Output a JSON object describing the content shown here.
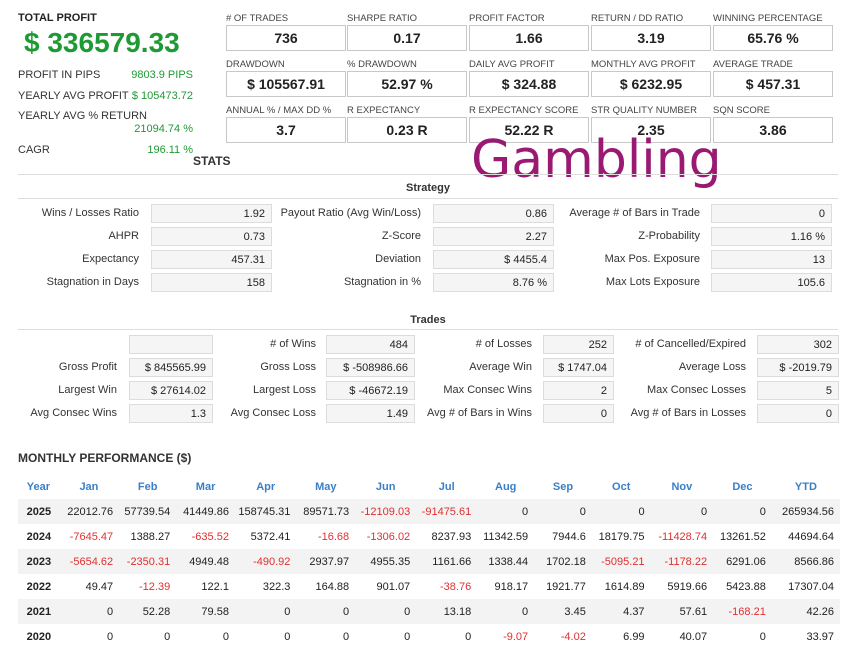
{
  "summary": {
    "total_profit_label": "TOTAL PROFIT",
    "total_profit_value": "$ 336579.33",
    "rows": [
      {
        "label": "PROFIT IN PIPS",
        "value": "9803.9 PIPS"
      },
      {
        "label": "YEARLY AVG PROFIT",
        "value": "$ 105473.72"
      },
      {
        "label": "YEARLY AVG % RETURN",
        "value": "21094.74 %"
      },
      {
        "label": "CAGR",
        "value": "196.11 %"
      }
    ]
  },
  "metrics": [
    {
      "label": "# OF TRADES",
      "value": "736"
    },
    {
      "label": "SHARPE RATIO",
      "value": "0.17"
    },
    {
      "label": "PROFIT FACTOR",
      "value": "1.66"
    },
    {
      "label": "RETURN / DD RATIO",
      "value": "3.19"
    },
    {
      "label": "WINNING PERCENTAGE",
      "value": "65.76 %"
    },
    {
      "label": "DRAWDOWN",
      "value": "$ 105567.91"
    },
    {
      "label": "% DRAWDOWN",
      "value": "52.97 %"
    },
    {
      "label": "DAILY AVG PROFIT",
      "value": "$ 324.88"
    },
    {
      "label": "MONTHLY AVG PROFIT",
      "value": "$ 6232.95"
    },
    {
      "label": "AVERAGE TRADE",
      "value": "$ 457.31"
    },
    {
      "label": "ANNUAL % / MAX DD %",
      "value": "3.7"
    },
    {
      "label": "R EXPECTANCY",
      "value": "0.23 R"
    },
    {
      "label": "R EXPECTANCY SCORE",
      "value": "52.22 R"
    },
    {
      "label": "STR QUALITY NUMBER",
      "value": "2.35"
    },
    {
      "label": "SQN SCORE",
      "value": "3.86"
    }
  ],
  "stats_title": "STATS",
  "overlay_text": "Gambling",
  "strategy": {
    "title": "Strategy",
    "items": [
      {
        "label": "Wins / Losses Ratio",
        "value": "1.92"
      },
      {
        "label": "Payout Ratio (Avg Win/Loss)",
        "value": "0.86"
      },
      {
        "label": "Average # of Bars in Trade",
        "value": "0"
      },
      {
        "label": "AHPR",
        "value": "0.73"
      },
      {
        "label": "Z-Score",
        "value": "2.27"
      },
      {
        "label": "Z-Probability",
        "value": "1.16 %"
      },
      {
        "label": "Expectancy",
        "value": "457.31"
      },
      {
        "label": "Deviation",
        "value": "$ 4455.4"
      },
      {
        "label": "Max Pos. Exposure",
        "value": "13"
      },
      {
        "label": "Stagnation in Days",
        "value": "158"
      },
      {
        "label": "Stagnation in %",
        "value": "8.76 %"
      },
      {
        "label": "Max Lots Exposure",
        "value": "105.6"
      }
    ]
  },
  "trades": {
    "title": "Trades",
    "items": [
      {
        "label": "",
        "value": ""
      },
      {
        "label": "# of Wins",
        "value": "484"
      },
      {
        "label": "# of Losses",
        "value": "252"
      },
      {
        "label": "# of Cancelled/Expired",
        "value": "302"
      },
      {
        "label": "Gross Profit",
        "value": "$ 845565.99"
      },
      {
        "label": "Gross Loss",
        "value": "$ -508986.66"
      },
      {
        "label": "Average Win",
        "value": "$ 1747.04"
      },
      {
        "label": "Average Loss",
        "value": "$ -2019.79"
      },
      {
        "label": "Largest Win",
        "value": "$ 27614.02"
      },
      {
        "label": "Largest Loss",
        "value": "$ -46672.19"
      },
      {
        "label": "Max Consec Wins",
        "value": "2"
      },
      {
        "label": "Max Consec Losses",
        "value": "5"
      },
      {
        "label": "Avg Consec Wins",
        "value": "1.3"
      },
      {
        "label": "Avg Consec Loss",
        "value": "1.49"
      },
      {
        "label": "Avg # of Bars in Wins",
        "value": "0"
      },
      {
        "label": "Avg # of Bars in Losses",
        "value": "0"
      }
    ]
  },
  "monthly": {
    "title": "MONTHLY PERFORMANCE ($)",
    "headers": [
      "Year",
      "Jan",
      "Feb",
      "Mar",
      "Apr",
      "May",
      "Jun",
      "Jul",
      "Aug",
      "Sep",
      "Oct",
      "Nov",
      "Dec",
      "YTD"
    ],
    "rows": [
      [
        "2025",
        "22012.76",
        "57739.54",
        "41449.86",
        "158745.31",
        "89571.73",
        "-12109.03",
        "-91475.61",
        "0",
        "0",
        "0",
        "0",
        "0",
        "265934.56"
      ],
      [
        "2024",
        "-7645.47",
        "1388.27",
        "-635.52",
        "5372.41",
        "-16.68",
        "-1306.02",
        "8237.93",
        "11342.59",
        "7944.6",
        "18179.75",
        "-11428.74",
        "13261.52",
        "44694.64"
      ],
      [
        "2023",
        "-5654.62",
        "-2350.31",
        "4949.48",
        "-490.92",
        "2937.97",
        "4955.35",
        "1161.66",
        "1338.44",
        "1702.18",
        "-5095.21",
        "-1178.22",
        "6291.06",
        "8566.86"
      ],
      [
        "2022",
        "49.47",
        "-12.39",
        "122.1",
        "322.3",
        "164.88",
        "901.07",
        "-38.76",
        "918.17",
        "1921.77",
        "1614.89",
        "5919.66",
        "5423.88",
        "17307.04"
      ],
      [
        "2021",
        "0",
        "52.28",
        "79.58",
        "0",
        "0",
        "0",
        "13.18",
        "0",
        "3.45",
        "4.37",
        "57.61",
        "-168.21",
        "42.26"
      ],
      [
        "2020",
        "0",
        "0",
        "0",
        "0",
        "0",
        "0",
        "0",
        "-9.07",
        "-4.02",
        "6.99",
        "40.07",
        "0",
        "33.97"
      ]
    ]
  },
  "colors": {
    "profit_green": "#1e9a35",
    "negative_red": "#e03030",
    "header_blue": "#3a7fc6",
    "overlay_magenta": "#9a1a73"
  }
}
